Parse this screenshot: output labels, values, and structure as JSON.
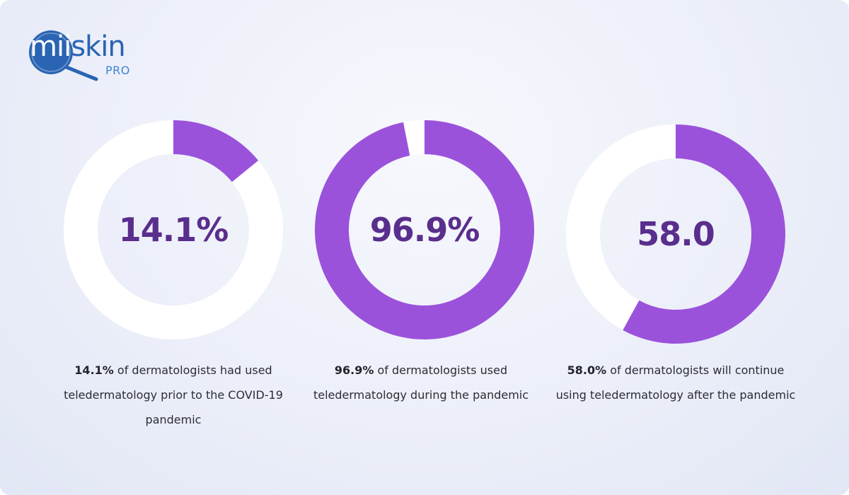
{
  "logo": {
    "mii": "mii",
    "skin": "skin",
    "pro": "PRO"
  },
  "colors": {
    "accent": "#9b52db",
    "track": "#ffffff",
    "value_text": "#5a2e8c"
  },
  "chart_data": [
    {
      "type": "pie",
      "variant": "donut",
      "value": 14.1,
      "max": 100,
      "center_label": "14.1%",
      "caption": {
        "highlight": "14.1%",
        "text": " of dermatologists had used teledermatology prior to the COVID-19 pandemic"
      }
    },
    {
      "type": "pie",
      "variant": "donut",
      "value": 96.9,
      "max": 100,
      "center_label": "96.9%",
      "caption": {
        "highlight": "96.9%",
        "text": " of dermatologists used teledermatology during the pandemic"
      }
    },
    {
      "type": "pie",
      "variant": "donut",
      "value": 58.0,
      "max": 100,
      "center_label": "58.0",
      "caption": {
        "highlight": "58.0%",
        "text": " of dermatologists will continue using teledermatology after the pandemic"
      }
    }
  ]
}
